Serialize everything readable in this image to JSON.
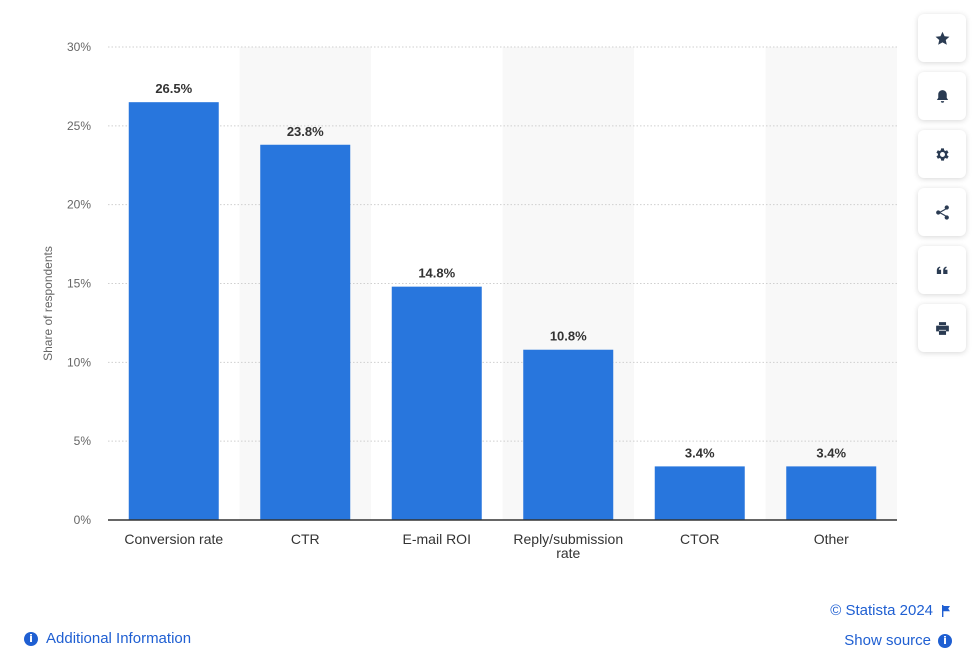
{
  "chart_data": {
    "type": "bar",
    "categories": [
      "Conversion rate",
      "CTR",
      "E-mail ROI",
      "Reply/submission rate",
      "CTOR",
      "Other"
    ],
    "category_lines": [
      [
        "Conversion rate"
      ],
      [
        "CTR"
      ],
      [
        "E-mail ROI"
      ],
      [
        "Reply/submission",
        "rate"
      ],
      [
        "CTOR"
      ],
      [
        "Other"
      ]
    ],
    "values": [
      26.5,
      23.8,
      14.8,
      10.8,
      3.4,
      3.4
    ],
    "value_labels": [
      "26.5%",
      "23.8%",
      "14.8%",
      "10.8%",
      "3.4%",
      "3.4%"
    ],
    "ylabel": "Share of respondents",
    "ylim": [
      0,
      30
    ],
    "yticks": [
      0,
      5,
      10,
      15,
      20,
      25,
      30
    ],
    "ytick_labels": [
      "0%",
      "5%",
      "10%",
      "15%",
      "20%",
      "25%",
      "30%"
    ],
    "grid": true,
    "bar_color": "#2876dd"
  },
  "toolbar": {
    "buttons": [
      {
        "name": "favorite-button",
        "icon": "star-icon"
      },
      {
        "name": "notification-button",
        "icon": "bell-icon"
      },
      {
        "name": "settings-button",
        "icon": "gear-icon"
      },
      {
        "name": "share-button",
        "icon": "share-icon"
      },
      {
        "name": "cite-button",
        "icon": "quote-icon"
      },
      {
        "name": "print-button",
        "icon": "print-icon"
      }
    ]
  },
  "footer": {
    "additional_info": "Additional Information",
    "credit": "© Statista 2024",
    "show_source": "Show source",
    "info_glyph": "i"
  }
}
